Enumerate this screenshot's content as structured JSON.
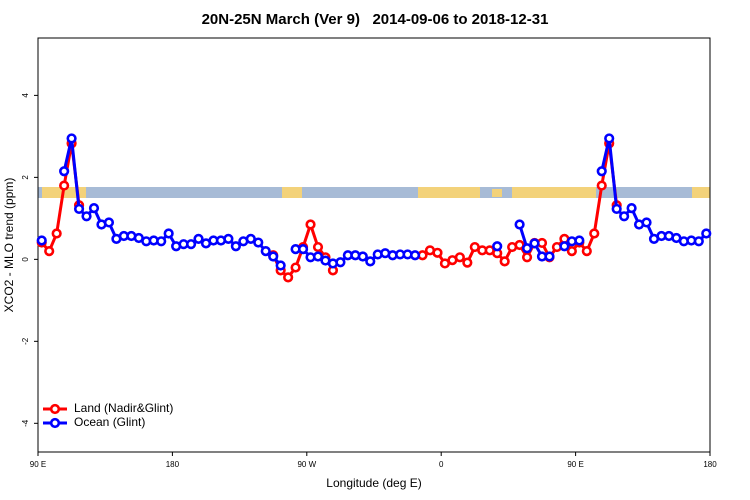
{
  "chart_data": {
    "type": "line",
    "title": "20N-25N March (Ver 9)   2014-09-06 to 2018-12-31",
    "x_label": "Longitude (deg E)",
    "y_label": "XCO2 - MLO trend (ppm)",
    "x": [
      92.5,
      97.5,
      102.5,
      107.5,
      112.5,
      117.5,
      122.5,
      127.5,
      132.5,
      137.5,
      142.5,
      147.5,
      152.5,
      157.5,
      162.5,
      167.5,
      172.5,
      177.5,
      182.5,
      187.5,
      192.5,
      197.5,
      202.5,
      207.5,
      212.5,
      217.5,
      222.5,
      227.5,
      232.5,
      237.5,
      242.5,
      247.5,
      252.5,
      257.5,
      262.5,
      267.5,
      272.5,
      277.5,
      282.5,
      287.5,
      292.5,
      297.5,
      302.5,
      307.5,
      312.5,
      317.5,
      322.5,
      327.5,
      332.5,
      337.5,
      342.5,
      347.5,
      352.5,
      357.5,
      362.5,
      367.5,
      372.5,
      377.5,
      382.5,
      387.5,
      392.5,
      397.5,
      402.5,
      407.5,
      412.5,
      417.5,
      422.5,
      427.5,
      432.5,
      437.5,
      442.5,
      447.5,
      452.5,
      457.5,
      462.5,
      467.5,
      472.5,
      477.5,
      482.5,
      487.5,
      492.5,
      497.5,
      502.5,
      507.5,
      512.5,
      517.5,
      522.5,
      527.5,
      532.5,
      537.5
    ],
    "series": [
      {
        "name": "Land (Nadir&Glint)",
        "color": "#ff0000",
        "values": [
          0.41,
          0.2,
          0.63,
          1.8,
          2.83,
          1.32,
          null,
          null,
          null,
          null,
          null,
          null,
          null,
          null,
          null,
          null,
          null,
          null,
          null,
          null,
          null,
          null,
          null,
          null,
          null,
          null,
          null,
          null,
          null,
          null,
          null,
          0.1,
          -0.27,
          -0.44,
          -0.2,
          0.3,
          0.85,
          0.3,
          0.05,
          -0.27,
          null,
          null,
          null,
          null,
          null,
          null,
          null,
          null,
          null,
          null,
          null,
          0.1,
          0.22,
          0.16,
          -0.1,
          -0.02,
          0.05,
          -0.08,
          0.3,
          0.22,
          0.22,
          0.15,
          -0.05,
          0.3,
          0.35,
          0.05,
          0.4,
          0.4,
          0.05,
          0.3,
          0.5,
          0.2,
          0.41,
          0.2,
          0.63,
          1.8,
          2.83,
          1.32,
          null,
          null,
          null,
          null,
          null,
          null,
          null,
          null,
          null,
          null,
          null,
          null
        ]
      },
      {
        "name": "Ocean (Glint)",
        "color": "#0000ff",
        "values": [
          0.46,
          null,
          null,
          2.15,
          2.95,
          1.23,
          1.05,
          1.25,
          0.85,
          0.9,
          0.5,
          0.57,
          0.57,
          0.52,
          0.44,
          0.46,
          0.44,
          0.63,
          0.32,
          0.37,
          0.37,
          0.5,
          0.39,
          0.46,
          0.46,
          0.5,
          0.32,
          0.44,
          0.5,
          0.41,
          0.2,
          0.07,
          -0.15,
          null,
          0.25,
          0.25,
          0.05,
          0.07,
          -0.03,
          -0.1,
          -0.07,
          0.1,
          0.1,
          0.07,
          -0.05,
          0.12,
          0.15,
          0.1,
          0.12,
          0.12,
          0.1,
          null,
          null,
          null,
          null,
          null,
          null,
          null,
          null,
          null,
          null,
          0.32,
          null,
          null,
          0.85,
          0.27,
          0.39,
          0.07,
          0.07,
          null,
          0.32,
          0.44,
          0.46,
          null,
          null,
          2.15,
          2.95,
          1.23,
          1.05,
          1.25,
          0.85,
          0.9,
          0.5,
          0.57,
          0.57,
          0.52,
          0.44,
          0.46,
          0.44,
          0.63
        ]
      }
    ],
    "xlim": [
      90,
      540
    ],
    "xticks": [
      {
        "value": 90,
        "label": "90 E"
      },
      180,
      {
        "value": 270,
        "label": "90 W"
      },
      {
        "value": 360,
        "label": "0"
      },
      {
        "value": 450,
        "label": "90 E"
      },
      {
        "value": 540,
        "label": "180"
      }
    ],
    "ylim": [
      -4.7,
      5.4
    ],
    "yticks": [
      -4,
      -2,
      0,
      2,
      4
    ],
    "legend": "lower left"
  }
}
